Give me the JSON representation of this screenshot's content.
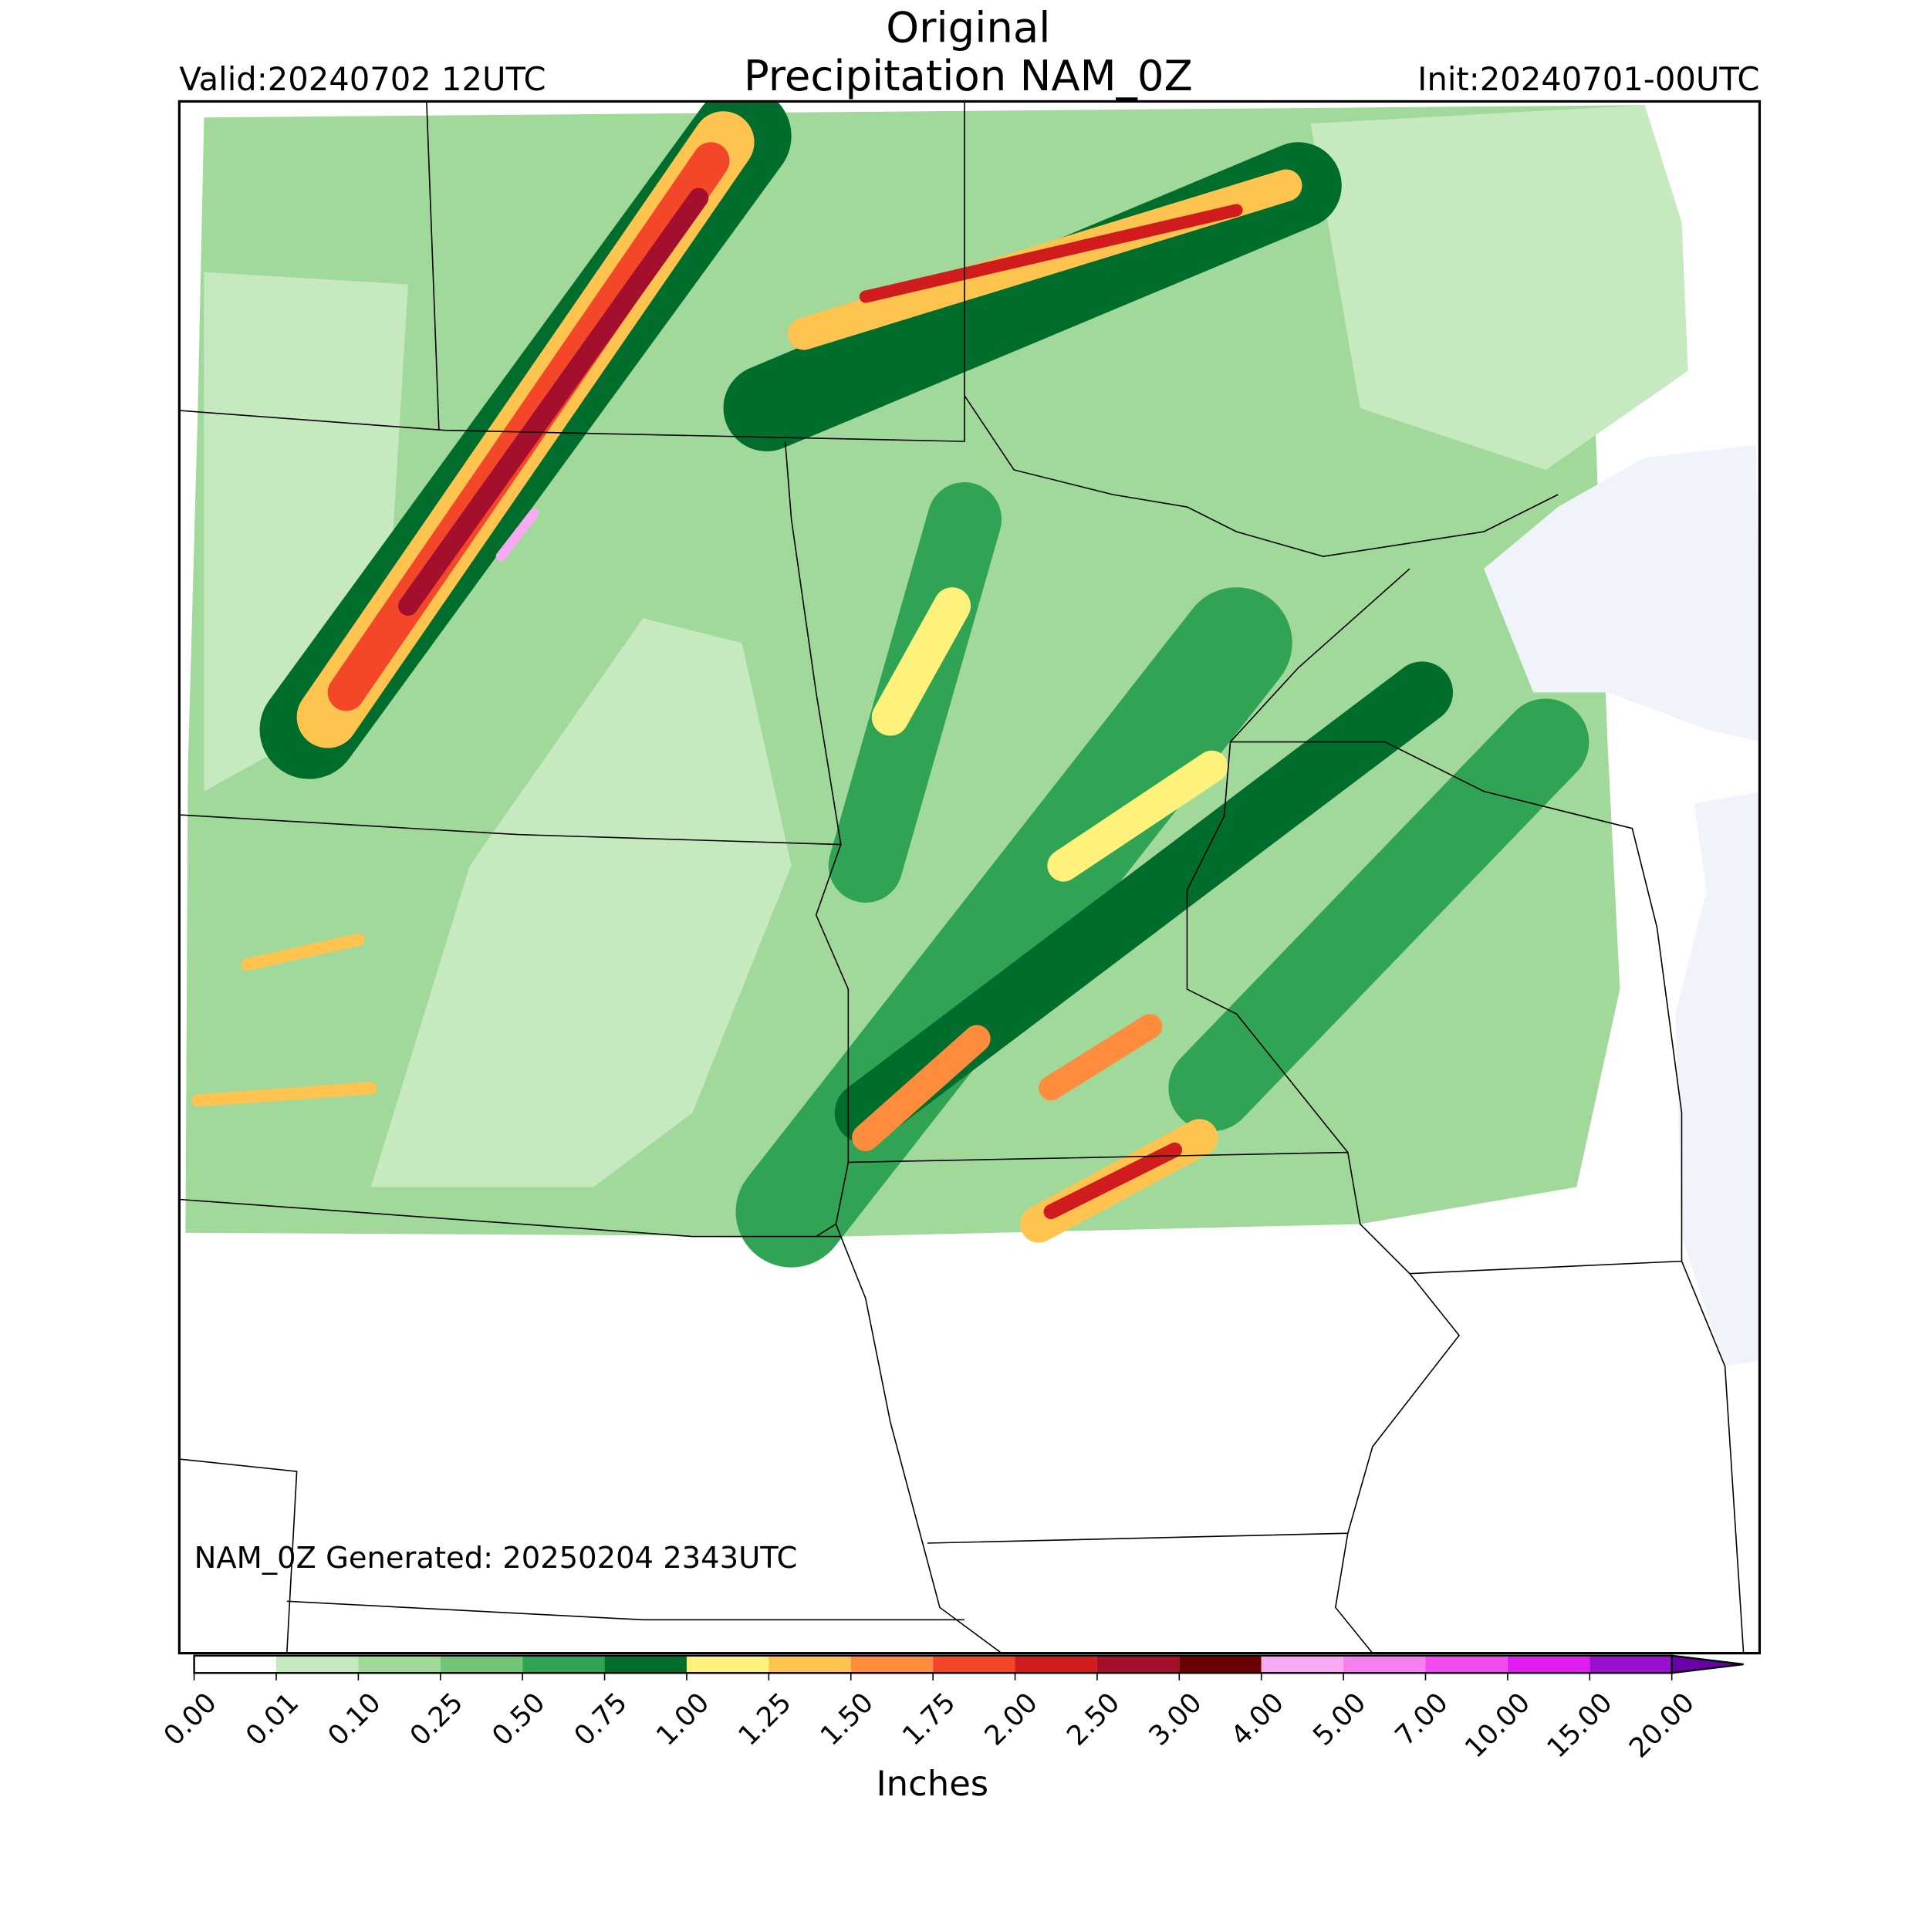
{
  "title": [
    "Original",
    "Precipitation NAM_0Z"
  ],
  "valid": "Valid:20240702 12UTC",
  "init": "Init:20240701-00UTC",
  "footer": "NAM_0Z Generated: 20250204 2343UTC",
  "colorbar": {
    "label": "Inches",
    "ticks": [
      {
        "value": 0,
        "label": "0.00"
      },
      {
        "value": 0.01,
        "label": "0.01"
      },
      {
        "value": 0.1,
        "label": "0.10"
      },
      {
        "value": 0.25,
        "label": "0.25"
      },
      {
        "value": 0.5,
        "label": "0.50"
      },
      {
        "value": 0.75,
        "label": "0.75"
      },
      {
        "value": 1,
        "label": "1.00"
      },
      {
        "value": 1.25,
        "label": "1.25"
      },
      {
        "value": 1.5,
        "label": "1.50"
      },
      {
        "value": 1.75,
        "label": "1.75"
      },
      {
        "value": 2,
        "label": "2.00"
      },
      {
        "value": 2.5,
        "label": "2.50"
      },
      {
        "value": 3,
        "label": "3.00"
      },
      {
        "value": 4,
        "label": "4.00"
      },
      {
        "value": 5,
        "label": "5.00"
      },
      {
        "value": 7,
        "label": "7.00"
      },
      {
        "value": 10,
        "label": "10.00"
      },
      {
        "value": 15,
        "label": "15.00"
      },
      {
        "value": 20,
        "label": "20.00"
      }
    ],
    "colors": [
      "#ffffff",
      "#c7e9c0",
      "#a1d99b",
      "#74c476",
      "#31a354",
      "#006d2c",
      "#fff27c",
      "#fec44f",
      "#fd8d3c",
      "#f4472a",
      "#d01c1c",
      "#a50f2e",
      "#6b0000",
      "#f7aaf2",
      "#f57ff0",
      "#f24cf0",
      "#e01ef2",
      "#9b0fd0"
    ],
    "over_color": "#6a00a8"
  }
}
